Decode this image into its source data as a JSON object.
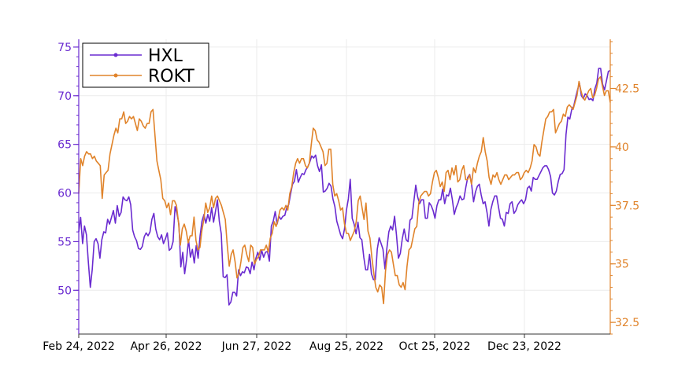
{
  "chart_data": {
    "type": "line",
    "x_tick_labels": [
      "Feb 24, 2022",
      "Apr 26, 2022",
      "Jun 27, 2022",
      "Aug 25, 2022",
      "Oct 25, 2022",
      "Dec 23, 2022"
    ],
    "left_axis": {
      "ticks": [
        "50",
        "55",
        "60",
        "65",
        "70",
        "75"
      ],
      "range": [
        45.5,
        75.8
      ],
      "color": "#6a2bd0"
    },
    "right_axis": {
      "ticks": [
        "32.5",
        "35",
        "37.5",
        "40",
        "42.5"
      ],
      "range": [
        32,
        44.6
      ],
      "color": "#e0832a"
    },
    "grid": true,
    "legend": {
      "position": "top-left"
    },
    "series": [
      {
        "name": "HXL",
        "axis": "left",
        "color": "#6a2bd0",
        "values": [
          56.0,
          57.5,
          54.8,
          56.6,
          55.7,
          52.9,
          50.3,
          52.1,
          55.0,
          55.3,
          54.8,
          53.3,
          55.2,
          56.0,
          55.9,
          57.3,
          56.8,
          57.5,
          58.2,
          56.9,
          58.7,
          57.6,
          58.0,
          59.6,
          59.3,
          59.2,
          59.6,
          58.8,
          56.2,
          55.5,
          55.1,
          54.3,
          54.2,
          54.5,
          55.5,
          55.9,
          55.6,
          56.0,
          57.3,
          57.9,
          56.3,
          55.5,
          55.2,
          55.7,
          54.8,
          55.3,
          55.9,
          54.1,
          54.3,
          55.0,
          58.6,
          57.9,
          56.8,
          52.4,
          53.9,
          51.7,
          53.2,
          55.2,
          53.4,
          54.2,
          52.8,
          54.6,
          53.3,
          55.6,
          57.1,
          57.8,
          56.9,
          57.8,
          57.1,
          58.5,
          57.0,
          58.1,
          59.3,
          57.1,
          55.8,
          51.4,
          51.3,
          51.6,
          48.5,
          48.8,
          49.8,
          49.8,
          49.4,
          52.1,
          51.5,
          51.9,
          51.8,
          52.4,
          52.3,
          51.7,
          52.9,
          52.1,
          53.3,
          53.9,
          53.1,
          54.1,
          53.4,
          53.9,
          54.0,
          53.0,
          56.6,
          57.1,
          58.1,
          56.8,
          57.6,
          57.3,
          57.6,
          57.7,
          58.5,
          58.8,
          59.9,
          60.9,
          61.2,
          62.4,
          61.1,
          61.6,
          62.0,
          61.9,
          62.4,
          62.7,
          63.2,
          63.8,
          63.6,
          63.9,
          62.8,
          62.2,
          62.9,
          60.1,
          60.2,
          60.5,
          61.0,
          60.7,
          59.4,
          58.6,
          57.1,
          56.4,
          55.7,
          55.3,
          56.3,
          58.2,
          59.4,
          61.4,
          57.4,
          56.8,
          55.8,
          57.0,
          55.4,
          55.2,
          53.4,
          52.1,
          52.1,
          53.7,
          51.7,
          51.1,
          51.1,
          54.2,
          55.4,
          54.8,
          54.2,
          52.2,
          54.3,
          56.0,
          56.6,
          56.2,
          57.6,
          55.7,
          53.3,
          53.8,
          55.3,
          56.3,
          55.2,
          55.0,
          57.2,
          57.4,
          59.1,
          60.8,
          59.6,
          58.9,
          59.3,
          59.3,
          57.4,
          57.4,
          59.0,
          58.7,
          58.2,
          57.4,
          58.7,
          59.3,
          59.3,
          60.4,
          58.9,
          59.8,
          59.7,
          60.5,
          59.3,
          57.8,
          58.5,
          59.0,
          59.7,
          59.3,
          59.4,
          60.6,
          61.6,
          61.9,
          60.9,
          59.1,
          60.1,
          60.7,
          60.9,
          59.8,
          58.9,
          59.1,
          58.0,
          56.6,
          58.3,
          59.1,
          59.7,
          59.7,
          58.5,
          57.4,
          57.3,
          56.6,
          58.0,
          57.9,
          58.9,
          59.1,
          57.9,
          58.2,
          58.8,
          59.1,
          59.3,
          58.9,
          59.3,
          60.5,
          60.7,
          60.2,
          61.6,
          61.4,
          61.4,
          61.8,
          62.2,
          62.6,
          62.8,
          62.8,
          62.4,
          61.7,
          60.0,
          59.8,
          60.2,
          61.2,
          61.9,
          62.0,
          62.4,
          66.0,
          67.8,
          67.6,
          68.6,
          68.9,
          69.8,
          70.6,
          71.3,
          70.0,
          69.7,
          70.2,
          70.0,
          69.6,
          69.7,
          69.5,
          70.7,
          71.3,
          72.8,
          72.8,
          71.2,
          70.6,
          71.5,
          72.5,
          72.6
        ]
      },
      {
        "name": "ROKT",
        "axis": "right",
        "color": "#e0832a",
        "values": [
          38.0,
          39.5,
          39.2,
          39.6,
          39.8,
          39.7,
          39.7,
          39.5,
          39.6,
          39.4,
          39.3,
          39.2,
          37.8,
          38.8,
          38.9,
          39.0,
          39.7,
          40.1,
          40.5,
          40.8,
          40.6,
          41.2,
          41.2,
          41.5,
          41.0,
          41.1,
          41.3,
          41.2,
          41.3,
          41.0,
          40.7,
          41.2,
          41.1,
          40.9,
          40.8,
          41.0,
          41.0,
          41.5,
          41.6,
          40.5,
          39.4,
          39.0,
          38.6,
          37.8,
          37.7,
          37.4,
          37.6,
          37.1,
          37.7,
          37.7,
          37.5,
          36.8,
          35.8,
          36.5,
          36.7,
          36.4,
          35.9,
          36.2,
          36.2,
          37.0,
          36.0,
          35.6,
          35.7,
          36.4,
          36.9,
          37.6,
          37.2,
          37.4,
          37.9,
          37.4,
          37.8,
          37.9,
          37.7,
          37.5,
          37.2,
          36.9,
          35.8,
          34.9,
          35.4,
          35.6,
          35.1,
          34.4,
          34.6,
          35.1,
          35.7,
          35.8,
          35.4,
          35.1,
          35.8,
          35.7,
          35.0,
          35.2,
          35.3,
          35.6,
          35.6,
          35.6,
          35.8,
          35.5,
          36.1,
          36.3,
          36.8,
          36.6,
          36.9,
          37.3,
          37.4,
          37.3,
          37.5,
          37.3,
          38.0,
          38.3,
          38.9,
          39.3,
          39.5,
          39.3,
          39.5,
          39.5,
          39.2,
          39.1,
          39.3,
          40.1,
          40.8,
          40.7,
          40.3,
          40.2,
          40.0,
          39.8,
          39.2,
          39.3,
          39.9,
          39.9,
          38.4,
          37.9,
          38.0,
          37.7,
          37.3,
          37.4,
          36.7,
          36.3,
          36.3,
          36.0,
          36.2,
          36.4,
          36.8,
          37.7,
          37.9,
          37.4,
          36.9,
          37.6,
          36.4,
          36.1,
          35.3,
          34.6,
          34.0,
          33.8,
          34.1,
          34.0,
          33.3,
          34.7,
          35.4,
          35.6,
          35.5,
          35.0,
          34.5,
          34.5,
          34.1,
          34.0,
          34.2,
          33.9,
          34.9,
          35.6,
          35.7,
          36.1,
          36.5,
          36.6,
          37.6,
          37.9,
          38.0,
          38.1,
          38.1,
          37.9,
          38.0,
          38.5,
          38.9,
          39.0,
          38.7,
          38.3,
          38.5,
          38.1,
          38.9,
          39.0,
          38.6,
          39.1,
          38.8,
          39.2,
          38.5,
          38.6,
          39.0,
          39.2,
          38.6,
          38.6,
          38.8,
          38.4,
          39.1,
          38.9,
          39.3,
          39.6,
          39.8,
          40.4,
          39.8,
          39.4,
          38.7,
          38.4,
          38.8,
          38.7,
          38.9,
          38.6,
          38.4,
          38.6,
          38.8,
          38.8,
          38.6,
          38.7,
          38.8,
          38.8,
          38.9,
          38.9,
          38.6,
          38.7,
          38.9,
          39.0,
          38.9,
          39.1,
          39.4,
          40.1,
          40.0,
          39.7,
          39.6,
          40.2,
          40.7,
          41.2,
          41.3,
          41.5,
          41.5,
          41.6,
          40.6,
          40.8,
          41.0,
          41.1,
          41.4,
          41.3,
          41.7,
          41.8,
          41.7,
          41.6,
          41.9,
          42.2,
          42.8,
          42.4,
          42.1,
          42.0,
          42.2,
          42.4,
          42.5,
          42.1,
          42.2,
          42.5,
          42.9,
          43.0,
          42.6,
          42.2,
          42.4,
          42.4,
          41.9
        ]
      }
    ]
  }
}
